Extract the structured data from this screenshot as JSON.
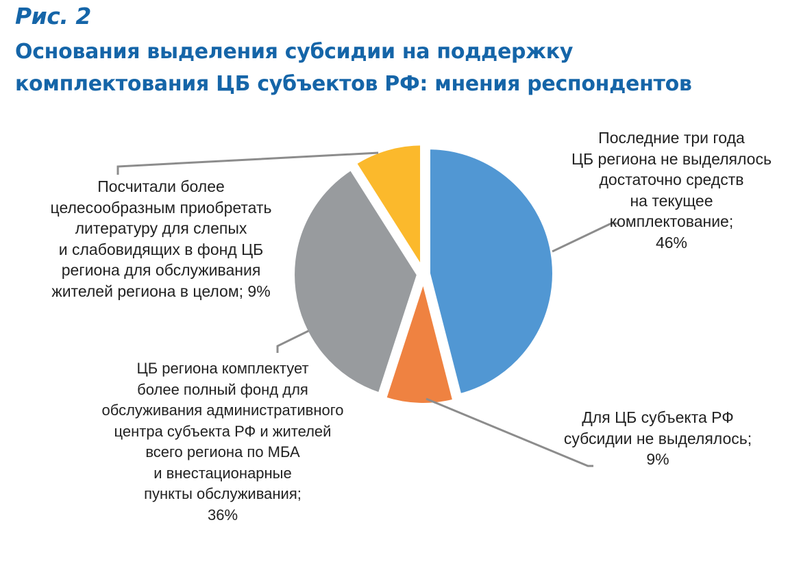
{
  "figure_number": "Рис. 2",
  "title_lines": [
    "Основания выделения субсидии на поддержку",
    "комплектования ЦБ субъектов РФ: мнения респондентов"
  ],
  "chart_data": {
    "type": "pie",
    "title": "Основания выделения субсидии на поддержку комплектования ЦБ субъектов РФ: мнения респондентов",
    "start": "top",
    "direction": "clockwise",
    "legend": "none",
    "slices": [
      {
        "value": 46,
        "color": "#5197d3",
        "label_lines": [
          "Последние три года",
          "ЦБ региона не выделялось",
          "достаточно средств",
          "на текущее",
          "комплектование;",
          "46%"
        ]
      },
      {
        "value": 9,
        "color": "#ef8241",
        "label_lines": [
          "Для ЦБ субъекта РФ",
          "субсидии не выделялось;",
          "9%"
        ]
      },
      {
        "value": 36,
        "color": "#989b9e",
        "label_lines": [
          "ЦБ региона комплектует",
          "более полный фонд для",
          "обслуживания административного",
          "центра субъекта РФ и жителей",
          "всего региона по МБА",
          "и внестационарные",
          "пункты обслуживания;",
          "36%"
        ]
      },
      {
        "value": 9,
        "color": "#fbb92c",
        "label_lines": [
          "Посчитали более",
          "целесообразным приобретать",
          "литературу для слепых",
          "и слабовидящих в фонд ЦБ",
          "региона для обслуживания",
          "жителей региона в целом; 9%"
        ]
      }
    ]
  },
  "colors": {
    "title": "#1565a8",
    "leader": "#8c8c8c",
    "text": "#222222"
  }
}
